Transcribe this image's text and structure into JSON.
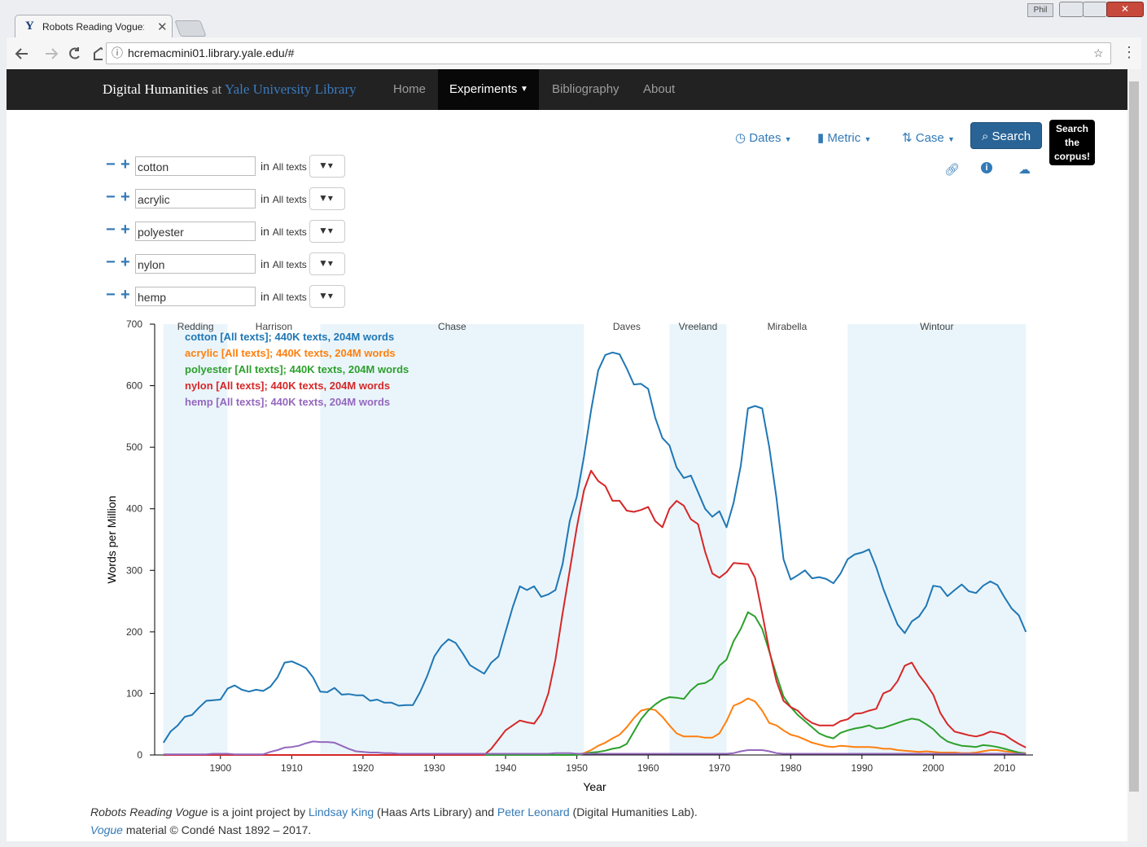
{
  "browser": {
    "tab_title": "Robots Reading Vogue:",
    "url": "hcremacmini01.library.yale.edu/#",
    "user": "Phil"
  },
  "navbar": {
    "brand_main": "Digital Humanities",
    "brand_at": "at",
    "brand_library": "Yale University Library",
    "items": [
      "Home",
      "Experiments",
      "Bibliography",
      "About"
    ]
  },
  "controls": {
    "in_label": "in",
    "scope": "All texts",
    "terms": [
      "cotton",
      "acrylic",
      "polyester",
      "nylon",
      "hemp"
    ],
    "buttons": [
      "Dates",
      "Metric",
      "Case"
    ],
    "search": "Search",
    "tooltip": "Search the corpus!"
  },
  "footer": {
    "line1": [
      "Robots Reading Vogue",
      " is a joint project by ",
      "Lindsay King",
      " (Haas Arts Library) and ",
      "Peter Leonard",
      " (Digital Humanities Lab)."
    ],
    "line2": [
      "Vogue",
      " material © Condé Nast 1892 – 2017."
    ]
  },
  "chart_data": {
    "type": "line",
    "x_label": "Year",
    "y_label": "Words per Million",
    "xlim": [
      1891,
      2014
    ],
    "ylim": [
      0,
      700
    ],
    "xticks": [
      1900,
      1910,
      1920,
      1930,
      1940,
      1950,
      1960,
      1970,
      1980,
      1990,
      2000,
      2010
    ],
    "yticks": [
      0,
      100,
      200,
      300,
      400,
      500,
      600,
      700
    ],
    "grid": false,
    "band_color": "#eaf5fb",
    "periods": [
      {
        "label": "Redding",
        "start": 1892,
        "end": 1901
      },
      {
        "label": "Harrison",
        "start": 1901,
        "end": 1914
      },
      {
        "label": "Chase",
        "start": 1914,
        "end": 1951
      },
      {
        "label": "Daves",
        "start": 1951,
        "end": 1963
      },
      {
        "label": "Vreeland",
        "start": 1963,
        "end": 1971
      },
      {
        "label": "Mirabella",
        "start": 1971,
        "end": 1988
      },
      {
        "label": "Wintour",
        "start": 1988,
        "end": 2013
      }
    ],
    "x": [
      1892,
      1893,
      1894,
      1895,
      1896,
      1897,
      1898,
      1899,
      1900,
      1901,
      1902,
      1903,
      1904,
      1905,
      1906,
      1907,
      1908,
      1909,
      1910,
      1911,
      1912,
      1913,
      1914,
      1915,
      1916,
      1917,
      1918,
      1919,
      1920,
      1921,
      1922,
      1923,
      1924,
      1925,
      1926,
      1927,
      1928,
      1929,
      1930,
      1931,
      1932,
      1933,
      1934,
      1935,
      1936,
      1937,
      1938,
      1939,
      1940,
      1941,
      1942,
      1943,
      1944,
      1945,
      1946,
      1947,
      1948,
      1949,
      1950,
      1951,
      1952,
      1953,
      1954,
      1955,
      1956,
      1957,
      1958,
      1959,
      1960,
      1961,
      1962,
      1963,
      1964,
      1965,
      1966,
      1967,
      1968,
      1969,
      1970,
      1971,
      1972,
      1973,
      1974,
      1975,
      1976,
      1977,
      1978,
      1979,
      1980,
      1981,
      1982,
      1983,
      1984,
      1985,
      1986,
      1987,
      1988,
      1989,
      1990,
      1991,
      1992,
      1993,
      1994,
      1995,
      1996,
      1997,
      1998,
      1999,
      2000,
      2001,
      2002,
      2003,
      2004,
      2005,
      2006,
      2007,
      2008,
      2009,
      2010,
      2011,
      2012,
      2013
    ],
    "series": [
      {
        "name": "cotton [All texts]; 440K texts, 204M words",
        "color": "#1f77b4",
        "values": [
          20,
          38,
          48,
          62,
          65,
          77,
          88,
          89,
          90,
          108,
          113,
          106,
          103,
          106,
          104,
          111,
          126,
          150,
          152,
          147,
          141,
          126,
          103,
          102,
          109,
          98,
          99,
          97,
          97,
          88,
          90,
          85,
          85,
          80,
          81,
          81,
          102,
          128,
          160,
          177,
          188,
          182,
          165,
          146,
          139,
          132,
          150,
          160,
          200,
          240,
          274,
          268,
          274,
          257,
          261,
          268,
          310,
          380,
          420,
          485,
          560,
          625,
          650,
          654,
          651,
          628,
          602,
          603,
          595,
          548,
          515,
          503,
          467,
          450,
          454,
          427,
          400,
          387,
          396,
          370,
          410,
          470,
          563,
          567,
          563,
          500,
          418,
          318,
          285,
          292,
          300,
          287,
          289,
          286,
          279,
          295,
          318,
          326,
          329,
          334,
          305,
          270,
          240,
          212,
          198,
          217,
          225,
          242,
          275,
          273,
          258,
          268,
          277,
          266,
          263,
          275,
          282,
          276,
          256,
          238,
          227,
          200
        ]
      },
      {
        "name": "acrylic [All texts]; 440K texts, 204M words",
        "color": "#ff7f0e",
        "values": [
          0,
          0,
          0,
          0,
          0,
          0,
          0,
          0,
          0,
          0,
          0,
          0,
          0,
          0,
          0,
          0,
          0,
          0,
          0,
          0,
          0,
          0,
          0,
          0,
          0,
          0,
          0,
          0,
          0,
          0,
          0,
          0,
          0,
          0,
          0,
          0,
          0,
          0,
          0,
          0,
          0,
          0,
          0,
          0,
          0,
          0,
          0,
          0,
          0,
          0,
          0,
          0,
          0,
          0,
          0,
          0,
          0,
          0,
          0,
          3,
          8,
          15,
          20,
          27,
          33,
          45,
          60,
          72,
          75,
          73,
          62,
          48,
          35,
          30,
          30,
          30,
          28,
          28,
          35,
          55,
          80,
          85,
          92,
          87,
          72,
          52,
          48,
          40,
          33,
          30,
          25,
          20,
          17,
          14,
          13,
          15,
          14,
          13,
          13,
          13,
          12,
          10,
          10,
          8,
          7,
          6,
          5,
          6,
          5,
          4,
          4,
          4,
          3,
          3,
          4,
          6,
          8,
          8,
          6,
          5,
          4,
          3
        ]
      },
      {
        "name": "polyester [All texts]; 440K texts, 204M words",
        "color": "#2ca02c",
        "values": [
          0,
          0,
          0,
          0,
          0,
          0,
          0,
          0,
          0,
          0,
          0,
          0,
          0,
          0,
          0,
          0,
          0,
          0,
          0,
          0,
          0,
          0,
          0,
          0,
          0,
          0,
          0,
          0,
          0,
          0,
          0,
          0,
          0,
          0,
          0,
          0,
          0,
          0,
          0,
          0,
          0,
          0,
          0,
          0,
          0,
          0,
          0,
          0,
          0,
          0,
          0,
          0,
          0,
          0,
          0,
          0,
          0,
          0,
          0,
          2,
          4,
          5,
          7,
          10,
          12,
          18,
          38,
          58,
          72,
          82,
          90,
          94,
          93,
          91,
          105,
          115,
          117,
          124,
          145,
          155,
          185,
          205,
          232,
          225,
          205,
          168,
          130,
          95,
          78,
          65,
          55,
          45,
          35,
          30,
          27,
          36,
          40,
          43,
          45,
          48,
          43,
          44,
          48,
          52,
          56,
          59,
          57,
          50,
          42,
          30,
          22,
          18,
          15,
          14,
          13,
          16,
          15,
          13,
          10,
          7,
          4,
          2
        ]
      },
      {
        "name": "nylon [All texts]; 440K texts, 204M words",
        "color": "#d62728",
        "values": [
          0,
          0,
          0,
          0,
          0,
          0,
          0,
          0,
          0,
          0,
          0,
          0,
          0,
          0,
          0,
          0,
          0,
          0,
          0,
          0,
          0,
          0,
          0,
          0,
          0,
          0,
          0,
          0,
          0,
          0,
          0,
          0,
          0,
          0,
          0,
          0,
          0,
          0,
          0,
          0,
          0,
          0,
          0,
          0,
          0,
          0,
          10,
          25,
          40,
          48,
          56,
          53,
          51,
          67,
          100,
          155,
          230,
          300,
          370,
          430,
          462,
          445,
          437,
          413,
          413,
          397,
          395,
          398,
          403,
          380,
          370,
          400,
          413,
          405,
          383,
          375,
          330,
          295,
          288,
          297,
          312,
          311,
          310,
          288,
          230,
          170,
          120,
          88,
          78,
          72,
          60,
          52,
          48,
          48,
          48,
          55,
          58,
          67,
          68,
          72,
          75,
          100,
          105,
          120,
          145,
          150,
          130,
          115,
          98,
          68,
          50,
          38,
          35,
          32,
          30,
          33,
          38,
          36,
          33,
          25,
          18,
          12
        ]
      },
      {
        "name": "hemp [All texts]; 440K texts, 204M words",
        "color": "#9467bd",
        "values": [
          1,
          1,
          1,
          1,
          1,
          1,
          1,
          2,
          2,
          2,
          1,
          1,
          1,
          1,
          1,
          5,
          8,
          12,
          13,
          15,
          19,
          22,
          21,
          21,
          20,
          15,
          10,
          6,
          5,
          4,
          4,
          3,
          3,
          2,
          2,
          2,
          2,
          2,
          2,
          2,
          2,
          2,
          2,
          2,
          2,
          2,
          2,
          2,
          2,
          2,
          2,
          2,
          2,
          2,
          2,
          3,
          3,
          3,
          2,
          2,
          2,
          2,
          2,
          2,
          2,
          2,
          2,
          2,
          2,
          2,
          2,
          2,
          2,
          2,
          2,
          2,
          2,
          2,
          2,
          2,
          3,
          6,
          8,
          8,
          8,
          6,
          3,
          2,
          2,
          2,
          2,
          2,
          2,
          2,
          2,
          2,
          2,
          2,
          2,
          2,
          2,
          2,
          2,
          2,
          2,
          2,
          2,
          2,
          2,
          2,
          2,
          2,
          2,
          2,
          2,
          2,
          2,
          2,
          2,
          2,
          2,
          2
        ]
      }
    ]
  }
}
